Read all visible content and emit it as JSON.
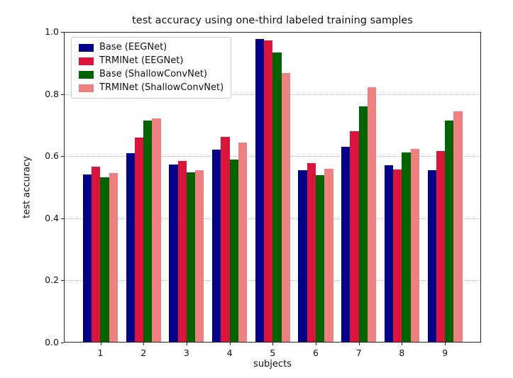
{
  "figure": {
    "title": "test accuracy using one-third labeled training samples",
    "xlabel": "subjects",
    "ylabel": "test accuracy"
  },
  "chart_data": {
    "type": "bar",
    "title": "test accuracy using one-third labeled training samples",
    "xlabel": "subjects",
    "ylabel": "test accuracy",
    "categories": [
      "1",
      "2",
      "3",
      "4",
      "5",
      "6",
      "7",
      "8",
      "9"
    ],
    "series": [
      {
        "name": "Base (EEGNet)",
        "color": "#00008B",
        "values": [
          0.54,
          0.61,
          0.572,
          0.621,
          0.978,
          0.554,
          0.63,
          0.571,
          0.554
        ]
      },
      {
        "name": "TRMINet (EEGNet)",
        "color": "#DC143C",
        "values": [
          0.567,
          0.66,
          0.585,
          0.661,
          0.973,
          0.578,
          0.68,
          0.556,
          0.617
        ]
      },
      {
        "name": "Base (ShallowConvNet)",
        "color": "#006400",
        "values": [
          0.531,
          0.715,
          0.548,
          0.588,
          0.933,
          0.539,
          0.76,
          0.613,
          0.715
        ]
      },
      {
        "name": "TRMINet (ShallowConvNet)",
        "color": "#F08080",
        "values": [
          0.545,
          0.722,
          0.555,
          0.645,
          0.868,
          0.56,
          0.821,
          0.623,
          0.745
        ]
      }
    ],
    "ylim": [
      0.0,
      1.0
    ],
    "yticks": [
      0.0,
      0.2,
      0.4,
      0.6,
      0.8,
      1.0
    ],
    "ytick_labels": [
      "0.0",
      "0.2",
      "0.4",
      "0.6",
      "0.8",
      "1.0"
    ],
    "grid": {
      "axis": "y",
      "style": "dotted",
      "color": "#b9b9b9"
    },
    "legend_position": "upper left",
    "frame_color": "#262626"
  }
}
